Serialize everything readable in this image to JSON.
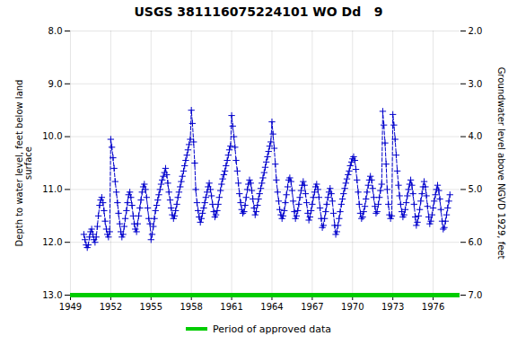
{
  "chart_data": {
    "type": "line",
    "title": "USGS 381116075224101 WO Dd   9",
    "ylabel": "Depth to water level, feet below land\nsurface",
    "y2label": "Groundwater level above NGVD 1929, feet",
    "xlim": [
      1949,
      1978
    ],
    "xticks": [
      1949,
      1952,
      1955,
      1958,
      1961,
      1964,
      1967,
      1970,
      1973,
      1976
    ],
    "ylim": [
      13.0,
      8.0
    ],
    "yticks": [
      {
        "value": 8.0,
        "label": "8.0"
      },
      {
        "value": 9.0,
        "label": "9.0"
      },
      {
        "value": 10.0,
        "label": "10.0"
      },
      {
        "value": 11.0,
        "label": "11.0"
      },
      {
        "value": 12.0,
        "label": "12.0"
      },
      {
        "value": 13.0,
        "label": "13.0"
      }
    ],
    "y2lim": [
      7.0,
      2.0
    ],
    "y2ticks": [
      {
        "value": 7.0,
        "label": "7.0"
      },
      {
        "value": 6.0,
        "label": "6.0"
      },
      {
        "value": 5.0,
        "label": "5.0"
      },
      {
        "value": 4.0,
        "label": "4.0"
      },
      {
        "value": 3.0,
        "label": "3.0"
      },
      {
        "value": 2.0,
        "label": "2.0"
      }
    ],
    "grid": true,
    "legend": "bottom",
    "color": "#0000cc",
    "marker": "plus",
    "line_style": "dashed",
    "hlines": [
      {
        "value": 13.0,
        "color": "#00cc00",
        "name": "Period of approved data"
      }
    ],
    "x": [
      1950.0,
      1950.08,
      1950.17,
      1950.25,
      1950.33,
      1950.42,
      1950.5,
      1950.58,
      1950.67,
      1950.75,
      1950.83,
      1950.92,
      1951.0,
      1951.08,
      1951.17,
      1951.25,
      1951.33,
      1951.42,
      1951.5,
      1951.58,
      1951.67,
      1951.75,
      1951.83,
      1951.92,
      1952.0,
      1952.08,
      1952.17,
      1952.25,
      1952.33,
      1952.42,
      1952.5,
      1952.58,
      1952.67,
      1952.75,
      1952.83,
      1952.92,
      1953.0,
      1953.08,
      1953.17,
      1953.25,
      1953.33,
      1953.42,
      1953.5,
      1953.58,
      1953.67,
      1953.75,
      1953.83,
      1953.92,
      1954.0,
      1954.08,
      1954.17,
      1954.25,
      1954.33,
      1954.42,
      1954.5,
      1954.58,
      1954.67,
      1954.75,
      1954.83,
      1954.92,
      1955.0,
      1955.08,
      1955.17,
      1955.25,
      1955.33,
      1955.42,
      1955.5,
      1955.58,
      1955.67,
      1955.75,
      1955.83,
      1955.92,
      1956.0,
      1956.08,
      1956.17,
      1956.25,
      1956.33,
      1956.42,
      1956.5,
      1956.58,
      1956.67,
      1956.75,
      1956.83,
      1956.92,
      1957.0,
      1957.08,
      1957.17,
      1957.25,
      1957.33,
      1957.42,
      1957.5,
      1957.58,
      1957.67,
      1957.75,
      1957.83,
      1957.92,
      1958.0,
      1958.08,
      1958.17,
      1958.25,
      1958.33,
      1958.42,
      1958.5,
      1958.58,
      1958.67,
      1958.75,
      1958.83,
      1958.92,
      1959.0,
      1959.08,
      1959.17,
      1959.25,
      1959.33,
      1959.42,
      1959.5,
      1959.58,
      1959.67,
      1959.75,
      1959.83,
      1959.92,
      1960.0,
      1960.08,
      1960.17,
      1960.25,
      1960.33,
      1960.42,
      1960.5,
      1960.58,
      1960.67,
      1960.75,
      1960.83,
      1960.92,
      1961.0,
      1961.08,
      1961.17,
      1961.25,
      1961.33,
      1961.42,
      1961.5,
      1961.58,
      1961.67,
      1961.75,
      1961.83,
      1961.92,
      1962.0,
      1962.08,
      1962.17,
      1962.25,
      1962.33,
      1962.42,
      1962.5,
      1962.58,
      1962.67,
      1962.75,
      1962.83,
      1962.92,
      1963.0,
      1963.08,
      1963.17,
      1963.25,
      1963.33,
      1963.42,
      1963.5,
      1963.58,
      1963.67,
      1963.75,
      1963.83,
      1963.92,
      1964.0,
      1964.08,
      1964.17,
      1964.25,
      1964.33,
      1964.42,
      1964.5,
      1964.58,
      1964.67,
      1964.75,
      1964.83,
      1964.92,
      1965.0,
      1965.08,
      1965.17,
      1965.25,
      1965.33,
      1965.42,
      1965.5,
      1965.58,
      1965.67,
      1965.75,
      1965.83,
      1965.92,
      1966.0,
      1966.08,
      1966.17,
      1966.25,
      1966.33,
      1966.42,
      1966.5,
      1966.58,
      1966.67,
      1966.75,
      1966.83,
      1966.92,
      1967.0,
      1967.08,
      1967.17,
      1967.25,
      1967.33,
      1967.42,
      1967.5,
      1967.58,
      1967.67,
      1967.75,
      1967.83,
      1967.92,
      1968.0,
      1968.08,
      1968.17,
      1968.25,
      1968.33,
      1968.42,
      1968.5,
      1968.58,
      1968.67,
      1968.75,
      1968.83,
      1968.92,
      1969.0,
      1969.08,
      1969.17,
      1969.25,
      1969.33,
      1969.42,
      1969.5,
      1969.58,
      1969.67,
      1969.75,
      1969.83,
      1969.92,
      1970.0,
      1970.08,
      1970.17,
      1970.25,
      1970.33,
      1970.42,
      1970.5,
      1970.58,
      1970.67,
      1970.75,
      1970.83,
      1970.92,
      1971.0,
      1971.08,
      1971.17,
      1971.25,
      1971.33,
      1971.42,
      1971.5,
      1971.58,
      1971.67,
      1971.75,
      1971.83,
      1971.92,
      1972.0,
      1972.08,
      1972.17,
      1972.25,
      1972.33,
      1972.42,
      1972.5,
      1972.58,
      1972.67,
      1972.75,
      1972.83,
      1972.92,
      1973.0,
      1973.08,
      1973.17,
      1973.25,
      1973.33,
      1973.42,
      1973.5,
      1973.58,
      1973.67,
      1973.75,
      1973.83,
      1973.92,
      1974.0,
      1974.08,
      1974.17,
      1974.25,
      1974.33,
      1974.42,
      1974.5,
      1974.58,
      1974.67,
      1974.75,
      1974.83,
      1974.92,
      1975.0,
      1975.08,
      1975.17,
      1975.25,
      1975.33,
      1975.42,
      1975.5,
      1975.58,
      1975.67,
      1975.75,
      1975.83,
      1975.92,
      1976.0,
      1976.08,
      1976.17,
      1976.25,
      1976.33,
      1976.42,
      1976.5,
      1976.58,
      1976.67,
      1976.75,
      1976.83,
      1976.92,
      1977.0,
      1977.08,
      1977.17,
      1977.25
    ],
    "values": [
      11.85,
      11.95,
      12.05,
      12.1,
      12.05,
      11.9,
      11.8,
      11.75,
      11.85,
      11.95,
      12.0,
      11.9,
      11.7,
      11.5,
      11.3,
      11.2,
      11.15,
      11.25,
      11.4,
      11.6,
      11.75,
      11.85,
      11.9,
      11.8,
      10.05,
      10.2,
      10.4,
      10.6,
      10.85,
      11.05,
      11.25,
      11.45,
      11.65,
      11.8,
      11.9,
      11.85,
      11.7,
      11.55,
      11.4,
      11.25,
      11.1,
      11.05,
      11.15,
      11.3,
      11.5,
      11.65,
      11.75,
      11.8,
      11.65,
      11.5,
      11.35,
      11.2,
      11.05,
      10.95,
      10.9,
      11.0,
      11.15,
      11.35,
      11.55,
      11.65,
      11.95,
      11.85,
      11.7,
      11.55,
      11.4,
      11.3,
      11.2,
      11.1,
      11.0,
      10.9,
      10.82,
      10.75,
      10.68,
      10.6,
      10.72,
      10.88,
      11.05,
      11.2,
      11.35,
      11.48,
      11.55,
      11.5,
      11.4,
      11.28,
      11.15,
      11.05,
      10.95,
      10.85,
      10.75,
      10.65,
      10.55,
      10.45,
      10.35,
      10.25,
      10.15,
      10.05,
      9.5,
      9.75,
      10.1,
      10.5,
      11.0,
      11.25,
      11.4,
      11.52,
      11.62,
      11.55,
      11.45,
      11.35,
      11.25,
      11.15,
      11.05,
      10.95,
      10.88,
      11.0,
      11.12,
      11.28,
      11.42,
      11.52,
      11.48,
      11.4,
      11.28,
      11.15,
      11.02,
      10.9,
      10.8,
      10.72,
      10.65,
      10.55,
      10.45,
      10.35,
      10.25,
      10.18,
      9.6,
      9.8,
      10.0,
      10.2,
      10.45,
      10.65,
      10.88,
      11.08,
      11.25,
      11.38,
      11.45,
      11.42,
      11.3,
      11.15,
      11.0,
      10.9,
      10.82,
      10.88,
      11.02,
      11.18,
      11.35,
      11.48,
      11.42,
      11.3,
      11.18,
      11.08,
      10.98,
      10.88,
      10.78,
      10.68,
      10.58,
      10.48,
      10.38,
      10.28,
      10.18,
      10.1,
      9.72,
      9.95,
      10.22,
      10.52,
      10.82,
      11.05,
      11.22,
      11.38,
      11.48,
      11.55,
      11.5,
      11.4,
      11.25,
      11.1,
      10.95,
      10.82,
      10.78,
      10.85,
      11.02,
      11.22,
      11.42,
      11.55,
      11.5,
      11.4,
      11.28,
      11.15,
      11.02,
      10.92,
      10.85,
      10.92,
      11.08,
      11.25,
      11.45,
      11.58,
      11.52,
      11.4,
      11.28,
      11.15,
      11.05,
      10.95,
      10.9,
      11.0,
      11.15,
      11.35,
      11.55,
      11.72,
      11.68,
      11.55,
      11.42,
      11.28,
      11.15,
      11.05,
      10.98,
      11.08,
      11.22,
      11.45,
      11.68,
      11.85,
      11.8,
      11.68,
      11.55,
      11.42,
      11.28,
      11.18,
      11.08,
      10.98,
      10.88,
      10.8,
      10.72,
      10.65,
      10.55,
      10.48,
      10.42,
      10.38,
      10.45,
      10.62,
      10.82,
      11.05,
      11.28,
      11.45,
      11.55,
      11.52,
      11.42,
      11.32,
      11.18,
      11.05,
      10.92,
      10.82,
      10.75,
      10.82,
      10.98,
      11.15,
      11.32,
      11.45,
      11.42,
      11.28,
      11.15,
      11.02,
      10.9,
      9.52,
      9.78,
      10.12,
      10.52,
      11.0,
      11.28,
      11.48,
      11.55,
      11.5,
      9.58,
      9.78,
      10.05,
      10.35,
      10.65,
      10.92,
      11.12,
      11.28,
      11.42,
      11.52,
      11.48,
      11.38,
      11.25,
      11.12,
      11.0,
      10.9,
      10.82,
      10.92,
      11.08,
      11.28,
      11.52,
      11.68,
      11.62,
      11.5,
      11.38,
      11.22,
      11.08,
      10.95,
      10.85,
      10.95,
      11.12,
      11.32,
      11.52,
      11.65,
      11.6,
      11.48,
      11.35,
      11.22,
      11.1,
      11.0,
      10.92,
      11.02,
      11.18,
      11.38,
      11.6,
      11.75,
      11.72,
      11.6,
      11.48,
      11.35,
      11.22,
      11.1
    ]
  }
}
